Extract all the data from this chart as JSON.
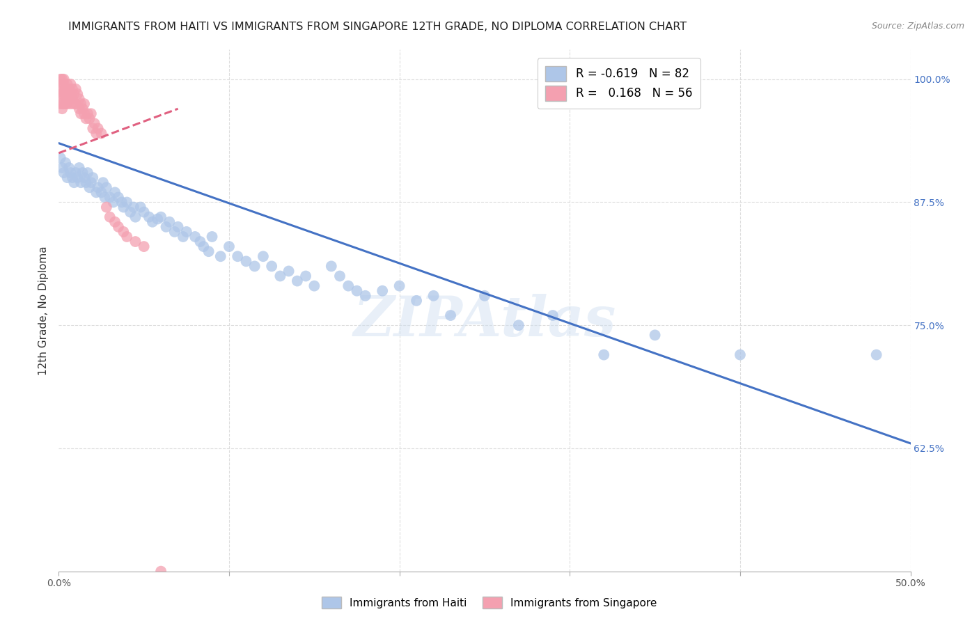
{
  "title": "IMMIGRANTS FROM HAITI VS IMMIGRANTS FROM SINGAPORE 12TH GRADE, NO DIPLOMA CORRELATION CHART",
  "source": "Source: ZipAtlas.com",
  "ylabel": "12th Grade, No Diploma",
  "xlim": [
    0.0,
    0.5
  ],
  "ylim": [
    0.5,
    1.03
  ],
  "xticks": [
    0.0,
    0.1,
    0.2,
    0.3,
    0.4,
    0.5
  ],
  "xticklabels": [
    "0.0%",
    "",
    "",
    "",
    "",
    "50.0%"
  ],
  "yticks_right": [
    0.625,
    0.75,
    0.875,
    1.0
  ],
  "yticklabels_right": [
    "62.5%",
    "75.0%",
    "87.5%",
    "100.0%"
  ],
  "grid_color": "#dddddd",
  "background_color": "#ffffff",
  "haiti_color": "#aec6e8",
  "singapore_color": "#f4a0b0",
  "haiti_line_color": "#4472c4",
  "singapore_line_color": "#e06080",
  "haiti_R": -0.619,
  "haiti_N": 82,
  "singapore_R": 0.168,
  "singapore_N": 56,
  "watermark": "ZIPAtlas",
  "haiti_scatter_x": [
    0.001,
    0.002,
    0.003,
    0.004,
    0.005,
    0.006,
    0.007,
    0.008,
    0.009,
    0.01,
    0.011,
    0.012,
    0.013,
    0.014,
    0.015,
    0.016,
    0.017,
    0.018,
    0.019,
    0.02,
    0.022,
    0.023,
    0.025,
    0.026,
    0.027,
    0.028,
    0.03,
    0.032,
    0.033,
    0.035,
    0.037,
    0.038,
    0.04,
    0.042,
    0.044,
    0.045,
    0.048,
    0.05,
    0.053,
    0.055,
    0.058,
    0.06,
    0.063,
    0.065,
    0.068,
    0.07,
    0.073,
    0.075,
    0.08,
    0.083,
    0.085,
    0.088,
    0.09,
    0.095,
    0.1,
    0.105,
    0.11,
    0.115,
    0.12,
    0.125,
    0.13,
    0.135,
    0.14,
    0.145,
    0.15,
    0.16,
    0.165,
    0.17,
    0.175,
    0.18,
    0.19,
    0.2,
    0.21,
    0.22,
    0.23,
    0.25,
    0.27,
    0.29,
    0.32,
    0.35,
    0.4,
    0.48
  ],
  "haiti_scatter_y": [
    0.92,
    0.91,
    0.905,
    0.915,
    0.9,
    0.91,
    0.905,
    0.9,
    0.895,
    0.905,
    0.9,
    0.91,
    0.895,
    0.905,
    0.9,
    0.895,
    0.905,
    0.89,
    0.895,
    0.9,
    0.885,
    0.89,
    0.885,
    0.895,
    0.88,
    0.89,
    0.88,
    0.875,
    0.885,
    0.88,
    0.875,
    0.87,
    0.875,
    0.865,
    0.87,
    0.86,
    0.87,
    0.865,
    0.86,
    0.855,
    0.858,
    0.86,
    0.85,
    0.855,
    0.845,
    0.85,
    0.84,
    0.845,
    0.84,
    0.835,
    0.83,
    0.825,
    0.84,
    0.82,
    0.83,
    0.82,
    0.815,
    0.81,
    0.82,
    0.81,
    0.8,
    0.805,
    0.795,
    0.8,
    0.79,
    0.81,
    0.8,
    0.79,
    0.785,
    0.78,
    0.785,
    0.79,
    0.775,
    0.78,
    0.76,
    0.78,
    0.75,
    0.76,
    0.72,
    0.74,
    0.72,
    0.72
  ],
  "singapore_scatter_x": [
    0.001,
    0.001,
    0.001,
    0.001,
    0.002,
    0.002,
    0.002,
    0.002,
    0.002,
    0.003,
    0.003,
    0.003,
    0.003,
    0.004,
    0.004,
    0.004,
    0.005,
    0.005,
    0.005,
    0.006,
    0.006,
    0.007,
    0.007,
    0.007,
    0.008,
    0.008,
    0.009,
    0.009,
    0.01,
    0.01,
    0.011,
    0.012,
    0.012,
    0.013,
    0.013,
    0.014,
    0.015,
    0.015,
    0.016,
    0.017,
    0.018,
    0.019,
    0.02,
    0.021,
    0.022,
    0.023,
    0.025,
    0.028,
    0.03,
    0.033,
    0.035,
    0.038,
    0.04,
    0.045,
    0.05,
    0.06
  ],
  "singapore_scatter_y": [
    1.0,
    0.99,
    0.985,
    0.975,
    1.0,
    0.995,
    0.985,
    0.975,
    0.97,
    1.0,
    0.995,
    0.985,
    0.975,
    0.99,
    0.985,
    0.975,
    0.995,
    0.985,
    0.975,
    0.99,
    0.98,
    0.995,
    0.985,
    0.975,
    0.99,
    0.98,
    0.985,
    0.975,
    0.99,
    0.975,
    0.985,
    0.98,
    0.97,
    0.975,
    0.965,
    0.97,
    0.975,
    0.965,
    0.96,
    0.965,
    0.96,
    0.965,
    0.95,
    0.955,
    0.945,
    0.95,
    0.945,
    0.87,
    0.86,
    0.855,
    0.85,
    0.845,
    0.84,
    0.835,
    0.83,
    0.5
  ],
  "haiti_line_x": [
    0.0,
    0.5
  ],
  "haiti_line_y": [
    0.935,
    0.63
  ],
  "singapore_line_x": [
    0.0,
    0.07
  ],
  "singapore_line_y": [
    0.925,
    0.97
  ]
}
